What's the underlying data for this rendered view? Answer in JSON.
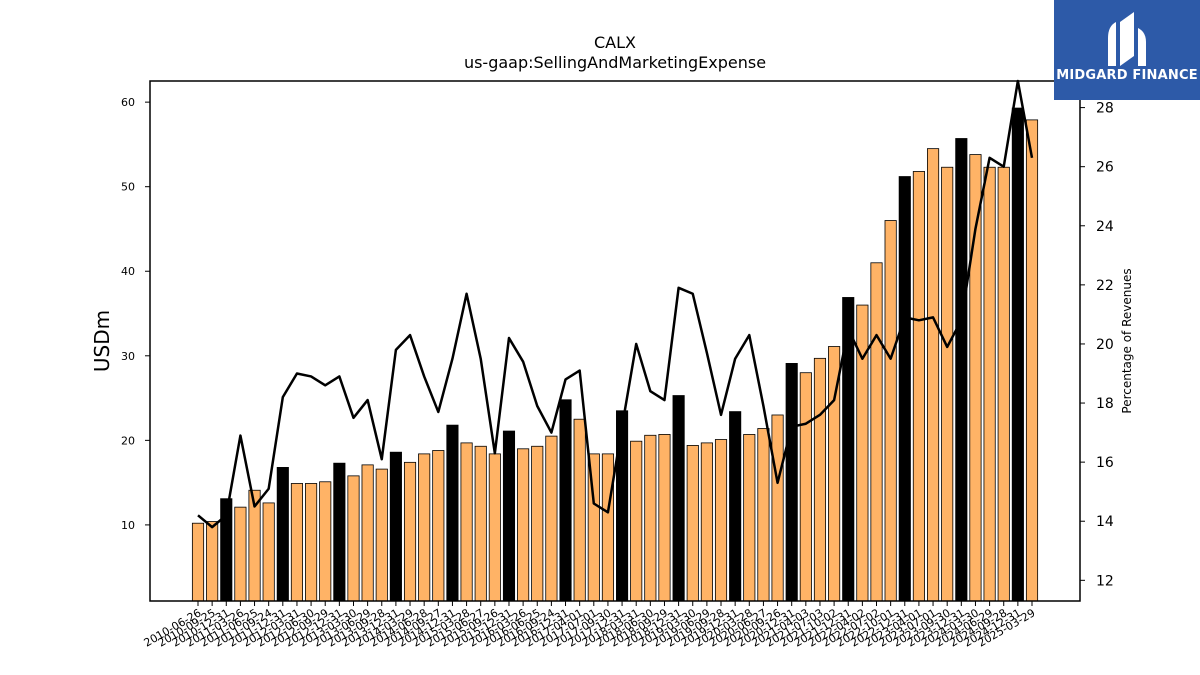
{
  "logo": {
    "text": "MIDGARD FINANCE",
    "icon": "midgard-logo-icon",
    "bg_color": "#2d5aa8"
  },
  "chart_data": {
    "type": "bar",
    "title": "CALX",
    "subtitle": "us-gaap:SellingAndMarketingExpense",
    "ylabel": "USDm",
    "y2label": "Percentage of Revenues",
    "ylim": [
      1,
      62.5
    ],
    "y2lim": [
      11.3,
      28.9
    ],
    "yticks": [
      10,
      20,
      30,
      40,
      50,
      60
    ],
    "y2ticks": [
      12,
      14,
      16,
      18,
      20,
      22,
      24,
      26,
      28
    ],
    "bar_color": "#ffb366",
    "annual_bar_color": "#000000",
    "line_color": "#000000",
    "grid": false,
    "legend": "none",
    "categories": [
      "2010-06-26",
      "2010-09-25",
      "2010-12-31",
      "2011-03-26",
      "2011-06-25",
      "2011-09-24",
      "2011-12-31",
      "2012-03-31",
      "2012-06-30",
      "2012-09-29",
      "2012-12-31",
      "2013-03-30",
      "2013-06-29",
      "2013-09-28",
      "2013-12-31",
      "2014-03-29",
      "2014-06-28",
      "2014-09-27",
      "2014-12-31",
      "2015-03-28",
      "2015-06-27",
      "2015-09-26",
      "2015-12-31",
      "2016-03-26",
      "2016-06-25",
      "2016-09-24",
      "2016-12-31",
      "2017-04-01",
      "2017-07-01",
      "2017-09-30",
      "2017-12-31",
      "2018-03-31",
      "2018-06-30",
      "2018-09-29",
      "2018-12-31",
      "2019-03-30",
      "2019-06-29",
      "2019-09-28",
      "2019-12-31",
      "2020-03-28",
      "2020-06-27",
      "2020-09-26",
      "2020-12-31",
      "2021-04-03",
      "2021-07-03",
      "2021-10-02",
      "2021-12-31",
      "2022-04-02",
      "2022-07-02",
      "2022-10-01",
      "2022-12-31",
      "2023-04-01",
      "2023-07-01",
      "2023-09-30",
      "2023-12-31",
      "2024-03-30",
      "2024-06-29",
      "2024-09-28",
      "2024-12-31",
      "2025-03-29"
    ],
    "annual": [
      0,
      0,
      1,
      0,
      0,
      0,
      1,
      0,
      0,
      0,
      1,
      0,
      0,
      0,
      1,
      0,
      0,
      0,
      1,
      0,
      0,
      0,
      1,
      0,
      0,
      0,
      1,
      0,
      0,
      0,
      1,
      0,
      0,
      0,
      1,
      0,
      0,
      0,
      1,
      0,
      0,
      0,
      1,
      0,
      0,
      0,
      1,
      0,
      0,
      0,
      1,
      0,
      0,
      0,
      1,
      0,
      0,
      0,
      1,
      0
    ],
    "series": [
      {
        "kind": "bar",
        "axis": "left",
        "values": [
          10.2,
          10.4,
          13.1,
          12.1,
          14.1,
          12.6,
          16.8,
          14.9,
          14.9,
          15.1,
          17.3,
          15.8,
          17.1,
          16.6,
          18.6,
          17.4,
          18.4,
          18.8,
          21.8,
          19.7,
          19.3,
          18.4,
          21.1,
          19.0,
          19.3,
          20.5,
          24.8,
          22.5,
          18.4,
          18.4,
          23.5,
          19.9,
          20.6,
          20.7,
          25.3,
          19.4,
          19.7,
          20.1,
          23.4,
          20.7,
          21.4,
          23.0,
          29.1,
          28.0,
          29.7,
          31.1,
          36.9,
          36.0,
          41.0,
          46.0,
          51.2,
          51.8,
          54.5,
          52.3,
          55.7,
          53.8,
          52.3,
          52.3,
          59.3,
          57.9
        ]
      },
      {
        "kind": "line",
        "axis": "right",
        "values": [
          14.2,
          13.8,
          14.2,
          16.9,
          14.5,
          15.1,
          18.2,
          19.0,
          18.9,
          18.6,
          18.9,
          17.5,
          18.1,
          16.1,
          19.8,
          20.3,
          18.9,
          17.7,
          19.5,
          21.7,
          19.5,
          16.3,
          20.2,
          19.4,
          17.9,
          17.0,
          18.8,
          19.1,
          14.6,
          14.3,
          17.2,
          20.0,
          18.4,
          18.1,
          21.9,
          21.7,
          19.7,
          17.6,
          19.5,
          20.3,
          17.9,
          15.3,
          17.2,
          17.3,
          17.6,
          18.1,
          20.5,
          19.5,
          20.3,
          19.5,
          20.9,
          20.8,
          20.9,
          19.9,
          20.8,
          23.9,
          26.3,
          26.0,
          28.9,
          26.3
        ]
      }
    ]
  }
}
